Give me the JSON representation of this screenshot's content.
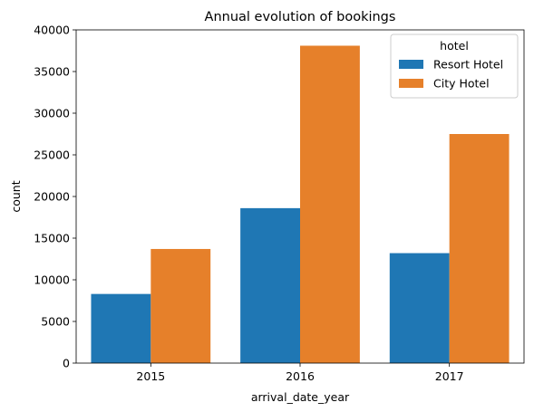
{
  "chart_data": {
    "type": "bar",
    "title": "Annual evolution of bookings",
    "xlabel": "arrival_date_year",
    "ylabel": "count",
    "categories": [
      "2015",
      "2016",
      "2017"
    ],
    "ylim": [
      0,
      40000
    ],
    "yticks": [
      0,
      5000,
      10000,
      15000,
      20000,
      25000,
      30000,
      35000,
      40000
    ],
    "grid": false,
    "legend": {
      "title": "hotel",
      "placement": "top-right"
    },
    "series": [
      {
        "name": "Resort Hotel",
        "color": "#1f77b4",
        "values": [
          8300,
          18600,
          13200
        ]
      },
      {
        "name": "City Hotel",
        "color": "#e6802a",
        "values": [
          13700,
          38100,
          27500
        ]
      }
    ]
  }
}
